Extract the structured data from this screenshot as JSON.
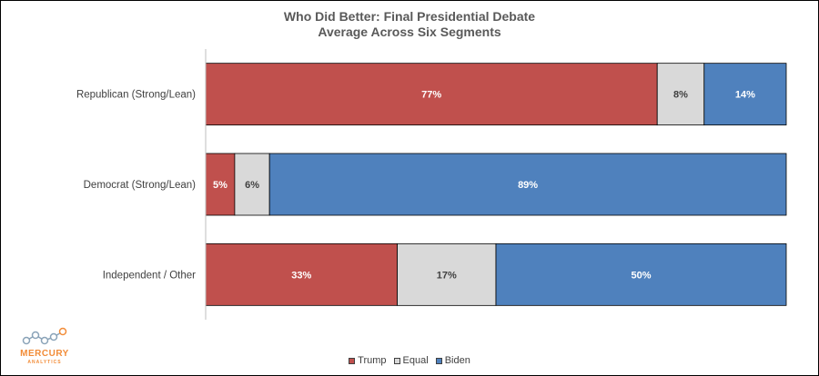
{
  "chart_data": {
    "type": "bar",
    "orientation": "horizontal",
    "stacked": "100%",
    "title": "Who Did Better: Final Presidential Debate",
    "subtitle": "Average Across Six Segments",
    "categories": [
      "Republican (Strong/Lean)",
      "Democrat (Strong/Lean)",
      "Independent / Other"
    ],
    "series": [
      {
        "name": "Trump",
        "values": [
          77,
          5,
          33
        ],
        "labels": [
          "77%",
          "5%",
          "33%"
        ],
        "color": "#c0504d"
      },
      {
        "name": "Equal",
        "values": [
          8,
          6,
          17
        ],
        "labels": [
          "8%",
          "6%",
          "17%"
        ],
        "color": "#d9d9d9"
      },
      {
        "name": "Biden",
        "values": [
          14,
          89,
          50
        ],
        "labels": [
          "14%",
          "89%",
          "50%"
        ],
        "color": "#4f81bd"
      }
    ],
    "legend_position": "bottom",
    "grid": false
  },
  "logo": {
    "name": "MERCURY",
    "subtitle": "ANALYTICS",
    "color": "#f28c38"
  }
}
